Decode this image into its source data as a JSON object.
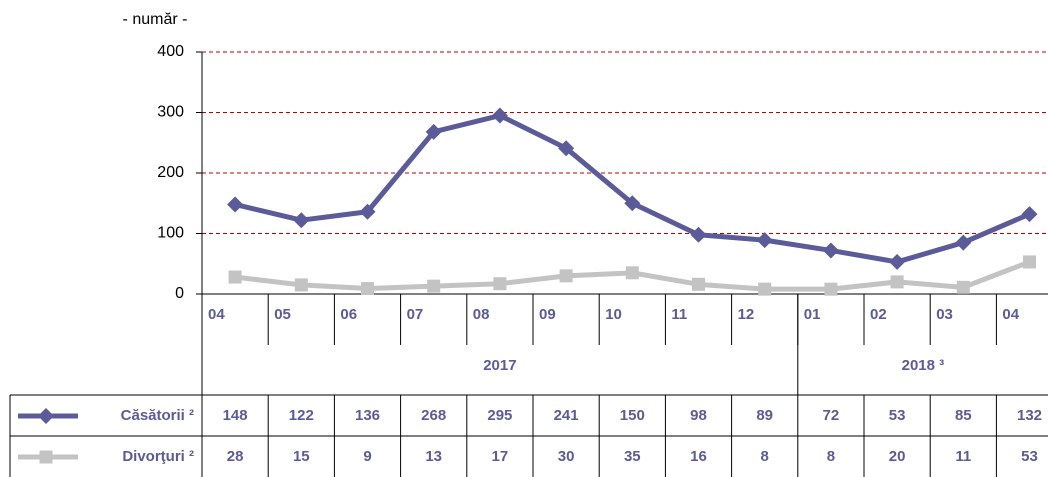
{
  "chart_data": {
    "type": "line",
    "y_label": "- număr -",
    "groups": [
      {
        "label": "2017",
        "categories": [
          "04",
          "05",
          "06",
          "07",
          "08",
          "09",
          "10",
          "11",
          "12"
        ]
      },
      {
        "label": "2018 ³",
        "categories": [
          "01",
          "02",
          "03",
          "04"
        ]
      }
    ],
    "series": [
      {
        "name": "Căsătorii ²",
        "color": "#5c5b99",
        "marker": "diamond",
        "values": [
          148,
          122,
          136,
          268,
          295,
          241,
          150,
          98,
          89,
          72,
          53,
          85,
          132
        ]
      },
      {
        "name": "Divorţuri ²",
        "color": "#c3c3c3",
        "marker": "square",
        "values": [
          28,
          15,
          9,
          13,
          17,
          30,
          35,
          16,
          8,
          8,
          20,
          11,
          53
        ]
      }
    ],
    "ylim": [
      0,
      400
    ],
    "yticks": [
      0,
      100,
      200,
      300,
      400
    ],
    "grid": true,
    "grid_color": "#c00000"
  }
}
